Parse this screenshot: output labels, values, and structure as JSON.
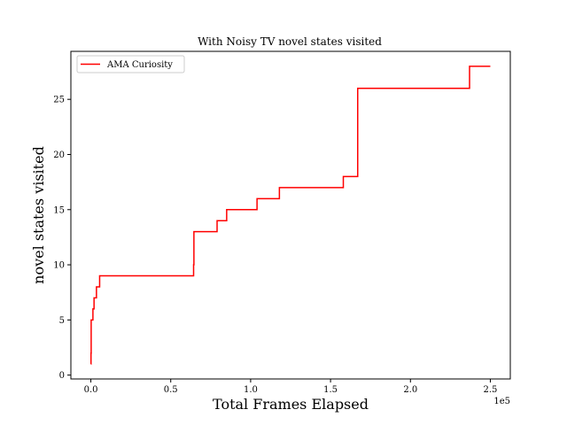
{
  "chart_data": {
    "type": "line",
    "title": "With Noisy TV  novel states visited",
    "xlabel": "Total Frames Elapsed",
    "ylabel": "novel states visited",
    "x_offset_label": "1e5",
    "xlim": [
      -0.125,
      2.625
    ],
    "ylim": [
      -0.35,
      29.35
    ],
    "x_ticks": [
      0.0,
      0.5,
      1.0,
      1.5,
      2.0,
      2.5
    ],
    "x_tick_labels": [
      "0.0",
      "0.5",
      "1.0",
      "1.5",
      "2.0",
      "2.5"
    ],
    "y_ticks": [
      0,
      5,
      10,
      15,
      20,
      25
    ],
    "y_tick_labels": [
      "0",
      "5",
      "10",
      "15",
      "20",
      "25"
    ],
    "grid": false,
    "legend_position": "upper left",
    "series": [
      {
        "name": "AMA Curiosity",
        "color": "#ff0000",
        "step": true,
        "x": [
          0.0,
          0.001,
          0.002,
          0.008,
          0.013,
          0.02,
          0.025,
          0.035,
          0.055,
          0.64,
          0.643,
          0.645,
          0.79,
          0.85,
          1.04,
          1.18,
          1.58,
          1.67,
          2.37,
          2.5
        ],
        "y": [
          1,
          2,
          5,
          5,
          6,
          7,
          7,
          8,
          9,
          9,
          10,
          13,
          14,
          15,
          16,
          17,
          18,
          26,
          28,
          28
        ]
      }
    ]
  }
}
